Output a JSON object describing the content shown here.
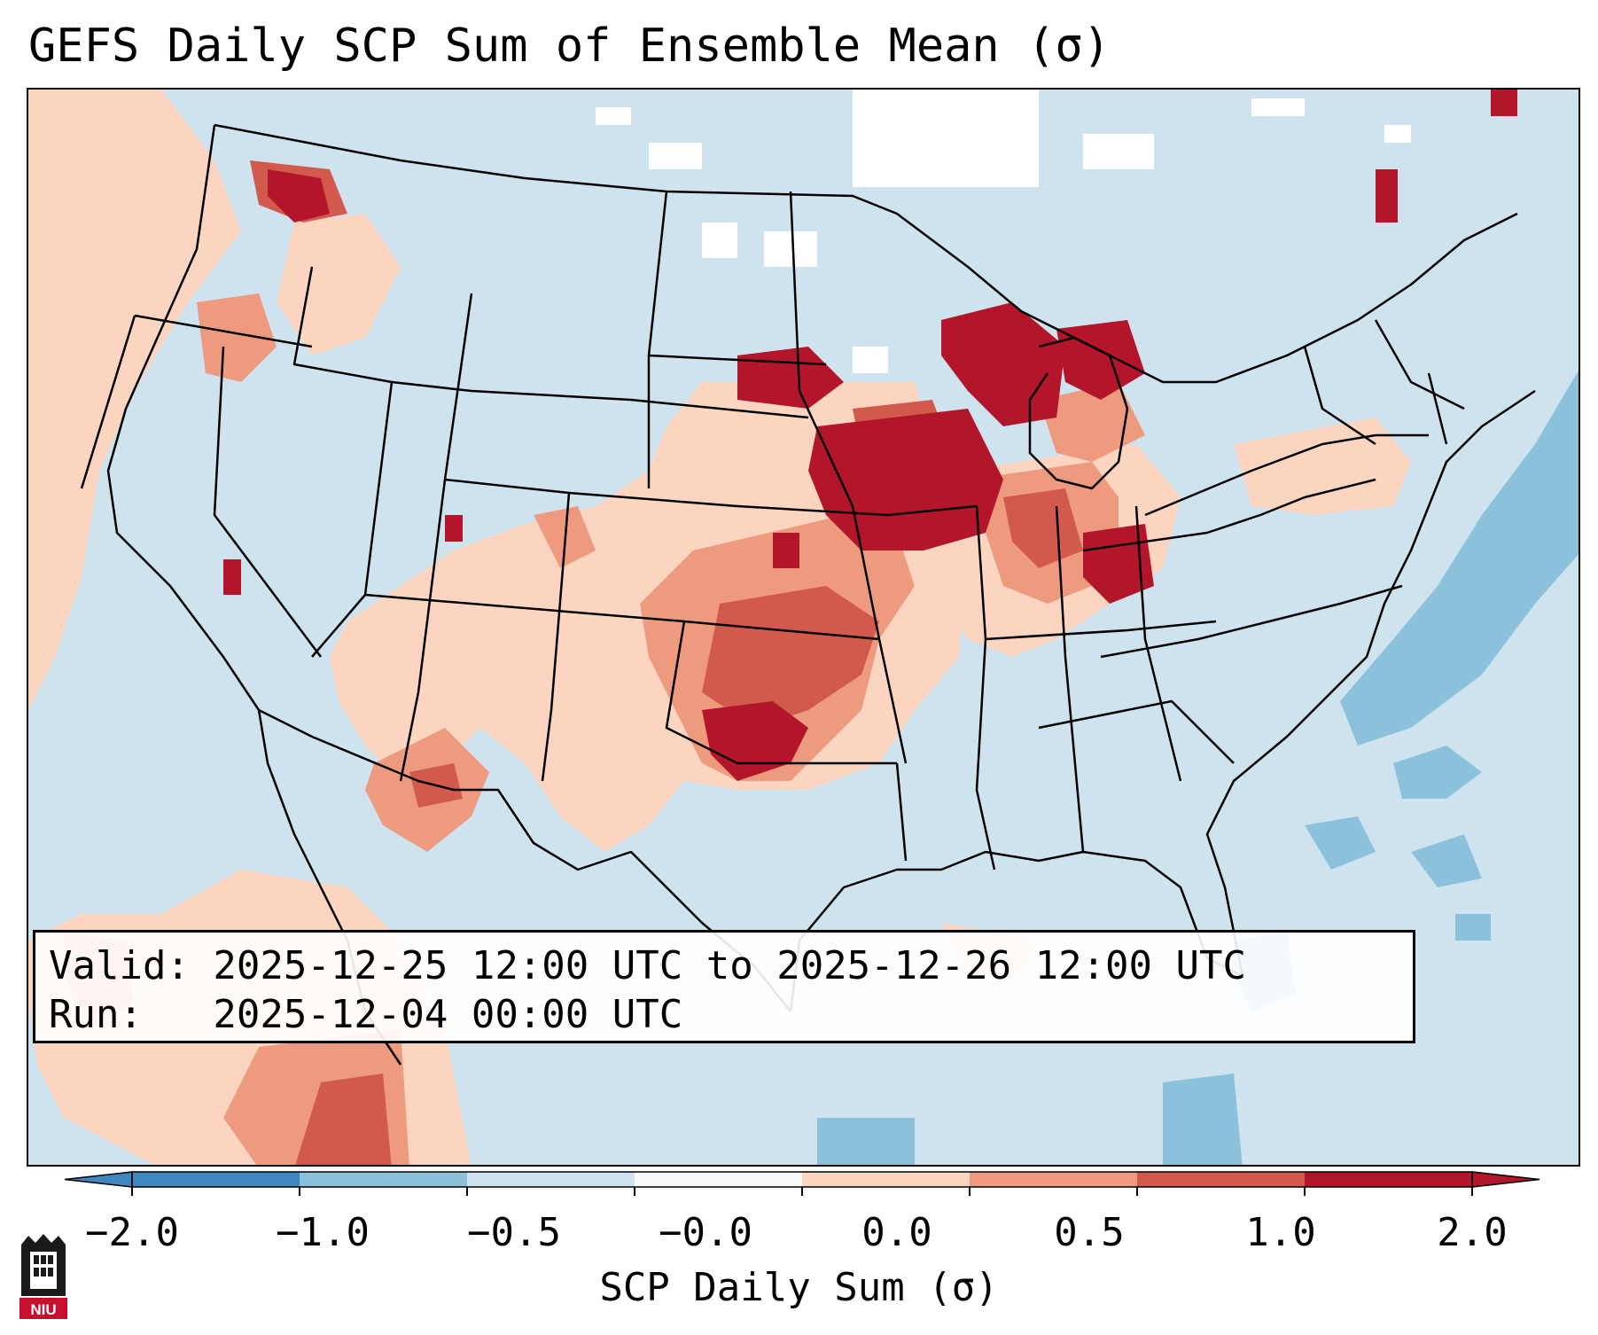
{
  "title": "GEFS Daily SCP Sum of Ensemble Mean (σ)",
  "info": {
    "valid_line": "Valid: 2025-12-25 12:00 UTC to 2025-12-26 12:00 UTC",
    "run_line": "Run:   2025-12-04 00:00 UTC"
  },
  "colorbar": {
    "label": "SCP Daily Sum (σ)",
    "ticks": [
      "−2.0",
      "−1.0",
      "−0.5",
      "−0.0",
      "0.0",
      "0.5",
      "1.0",
      "2.0"
    ],
    "bins": [
      {
        "color": "#3f87be"
      },
      {
        "color": "#8cc1dc"
      },
      {
        "color": "#cfe3ef"
      },
      {
        "color": "#f7f9fb"
      },
      {
        "color": "#fbd5c0"
      },
      {
        "color": "#ee9a7e"
      },
      {
        "color": "#d25a4c"
      },
      {
        "color": "#b3162a"
      }
    ]
  },
  "map": {
    "background_color": "#cfe3ef",
    "regions": [
      {
        "name": "northern-rockies-high",
        "level": 2
      },
      {
        "name": "pacific-northwest-moderate",
        "level": 1
      },
      {
        "name": "upper-midwest-high",
        "level": 2
      },
      {
        "name": "michigan-high",
        "level": 2
      },
      {
        "name": "indiana-ohio-elevated",
        "level": 1
      },
      {
        "name": "southern-plains-high",
        "level": 2
      },
      {
        "name": "arizona-new-mexico-moderate",
        "level": 1
      },
      {
        "name": "atlantic-negative",
        "level": -1
      }
    ]
  },
  "logo": {
    "text": "NIU",
    "color": "#c8102e"
  }
}
